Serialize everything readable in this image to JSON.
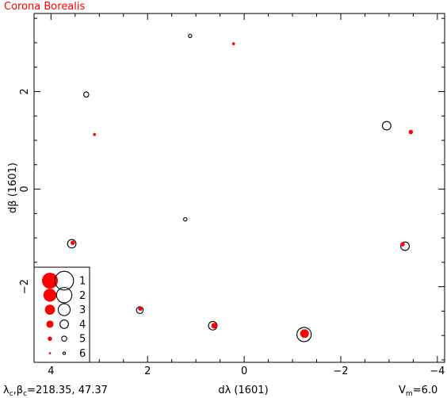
{
  "chart_data": {
    "type": "scatter",
    "title": "Corona Borealis",
    "xlabel": "dλ (1601)",
    "ylabel": "dβ (1601)",
    "xlim": [
      4.35,
      -4.15
    ],
    "ylim": [
      -3.55,
      3.6
    ],
    "xticks": [
      "4",
      "2",
      "0",
      "−2",
      "−4"
    ],
    "xtick_values": [
      4,
      2,
      0,
      -2,
      -4
    ],
    "yticks": [
      "−2",
      "0",
      "2"
    ],
    "ytick_values": [
      -2,
      0,
      2
    ],
    "center": {
      "lambda_sym": "λ",
      "beta_sym": "β",
      "sub": "c",
      "values": "=218.35, 47.37"
    },
    "magnitude_limit": {
      "sym": "V",
      "sub": "m",
      "value": "=6.0"
    },
    "colors": {
      "red": "#ff0000",
      "black": "#000000"
    },
    "series": [
      {
        "name": "black",
        "values": [
          {
            "x": 1.12,
            "y": 3.14,
            "mag": 5.5
          },
          {
            "x": 3.27,
            "y": 1.94,
            "mag": 5.0
          },
          {
            "x": -2.95,
            "y": 1.3,
            "mag": 4.0
          },
          {
            "x": 1.22,
            "y": -0.62,
            "mag": 5.5
          },
          {
            "x": 3.57,
            "y": -1.12,
            "mag": 4.0
          },
          {
            "x": -3.33,
            "y": -1.17,
            "mag": 4.0
          },
          {
            "x": 2.16,
            "y": -2.48,
            "mag": 4.5
          },
          {
            "x": 0.65,
            "y": -2.8,
            "mag": 4.0
          },
          {
            "x": -1.24,
            "y": -2.98,
            "mag": 2.3
          }
        ]
      },
      {
        "name": "red",
        "values": [
          {
            "x": 0.22,
            "y": 2.98,
            "mag": 5.5
          },
          {
            "x": 3.1,
            "y": 1.12,
            "mag": 5.5
          },
          {
            "x": -3.45,
            "y": 1.17,
            "mag": 5.0
          },
          {
            "x": 3.55,
            "y": -1.1,
            "mag": 5.0
          },
          {
            "x": -3.28,
            "y": -1.13,
            "mag": 5.0
          },
          {
            "x": 2.15,
            "y": -2.45,
            "mag": 5.0
          },
          {
            "x": 0.62,
            "y": -2.8,
            "mag": 4.5
          },
          {
            "x": -1.25,
            "y": -2.96,
            "mag": 3.5
          }
        ]
      }
    ],
    "legend": {
      "placement": "bottom-left",
      "entries": [
        "1",
        "2",
        "3",
        "4",
        "5",
        "6"
      ]
    }
  }
}
